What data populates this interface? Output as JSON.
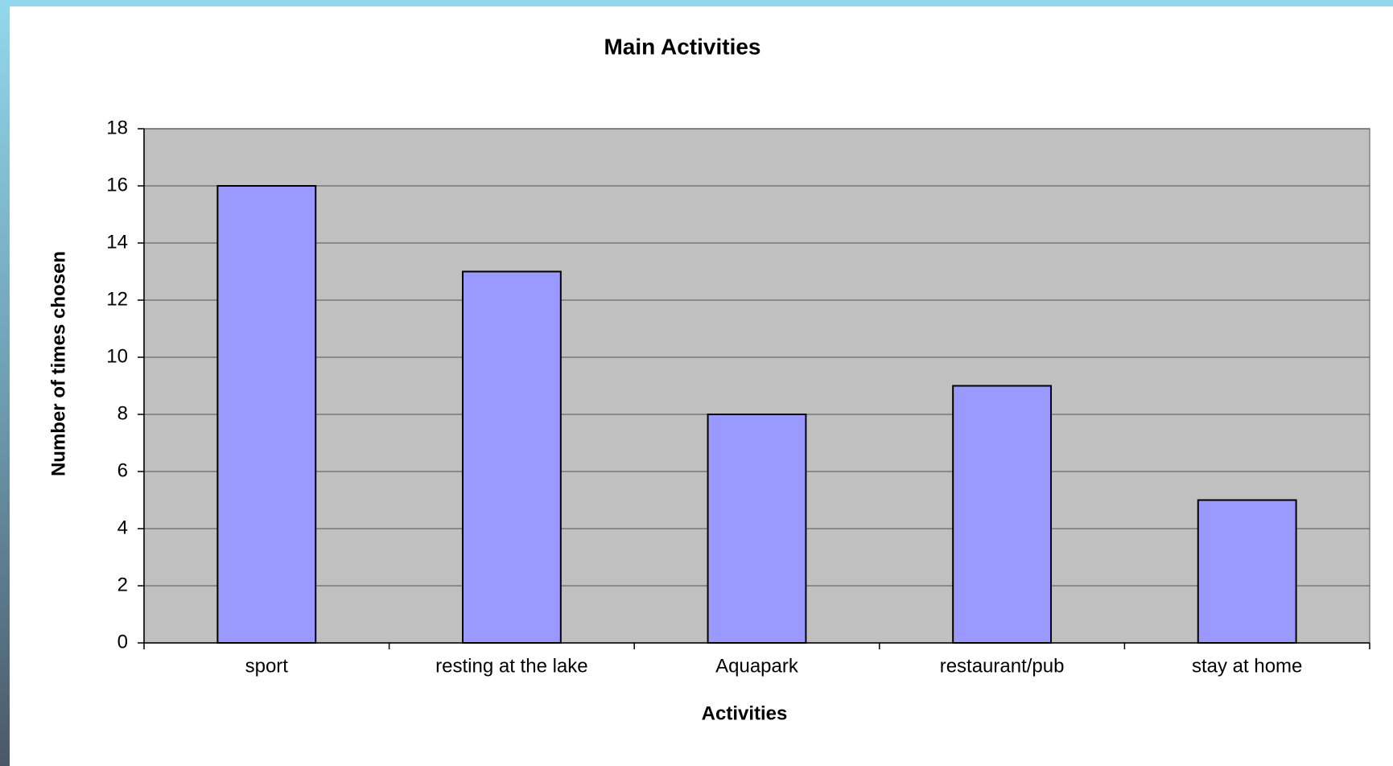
{
  "chart_data": {
    "type": "bar",
    "title": "Main Activities",
    "categories": [
      "sport",
      "resting at the lake",
      "Aquapark",
      "restaurant/pub",
      "stay at home"
    ],
    "values": [
      16,
      13,
      8,
      9,
      5
    ],
    "color": "#9999ff",
    "x_label": "Activities",
    "y_label": "Number of times chosen",
    "ylim": [
      0,
      18
    ],
    "yticks": [
      0,
      2,
      4,
      6,
      8,
      10,
      12,
      14,
      16,
      18
    ],
    "grid": true
  }
}
